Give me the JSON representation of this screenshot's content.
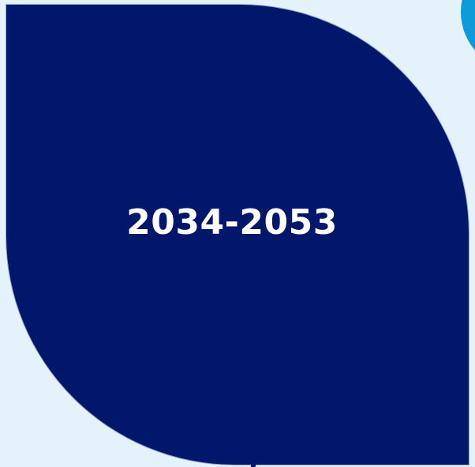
{
  "period": {
    "label": "2034-2053"
  },
  "colors": {
    "background": "#e4f3fb",
    "leaf": "#00176b",
    "accent": "#0e9bd8",
    "text": "#ffffff"
  }
}
